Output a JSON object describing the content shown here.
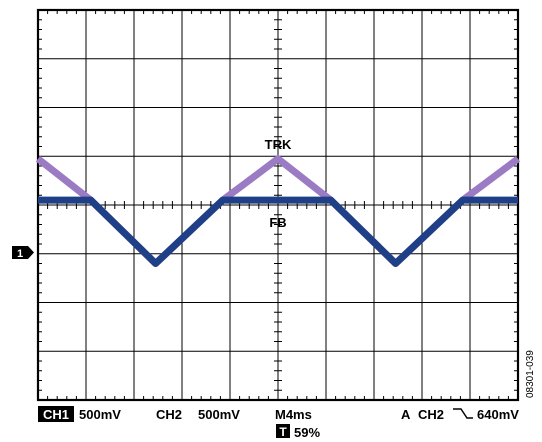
{
  "chart_data": {
    "type": "line",
    "title": "",
    "x_unit": "div",
    "y_unit": "div",
    "xlim": [
      0,
      10
    ],
    "ylim": [
      -4,
      4
    ],
    "grid": true,
    "series": [
      {
        "name": "TRK",
        "color": "#9b7cc4",
        "x": [
          0,
          1.1,
          2.45,
          3.85,
          5.0,
          6.1,
          7.45,
          8.85,
          10.0
        ],
        "y": [
          0.95,
          0.1,
          -1.2,
          0.1,
          0.95,
          0.1,
          -1.2,
          0.1,
          0.95
        ]
      },
      {
        "name": "FB",
        "color": "#1f3f86",
        "x": [
          0,
          1.1,
          2.45,
          3.85,
          6.1,
          7.45,
          8.85,
          10.0
        ],
        "y": [
          0.1,
          0.1,
          -1.2,
          0.1,
          0.1,
          -1.2,
          0.1,
          0.1
        ]
      }
    ],
    "annotations": [
      {
        "text": "TRK",
        "x": 5.0,
        "y": 1.25
      },
      {
        "text": "FB",
        "x": 5.0,
        "y": -0.35
      }
    ],
    "channel_marker": "1"
  },
  "readout": {
    "ch1_badge": "CH1",
    "ch1_scale": "500mV",
    "ch2_label": "CH2",
    "ch2_scale": "500mV",
    "timebase": "M4ms",
    "trigger_source": "A",
    "trigger_channel": "CH2",
    "trigger_level": "640mV",
    "trigger_pos_badge": "T",
    "trigger_pos": "59%"
  },
  "figure_id": "08301-039"
}
